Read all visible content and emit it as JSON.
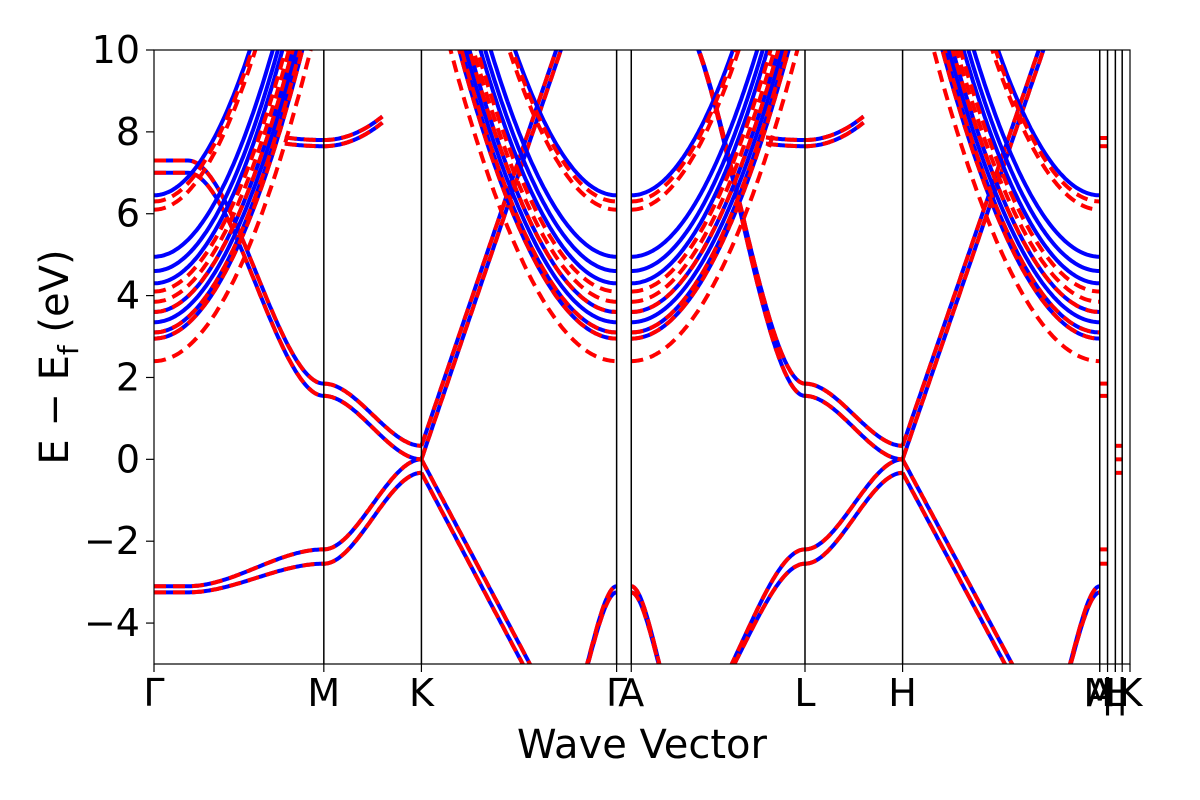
{
  "chart_data": {
    "type": "line",
    "title": "",
    "xlabel": "Wave Vector",
    "ylabel": "E − E_f (eV)",
    "ylabel_parts": {
      "main": "E − E",
      "sub": "f",
      "unit": " (eV)"
    },
    "ylim": [
      -5,
      10
    ],
    "yticks": [
      -4,
      -2,
      0,
      2,
      4,
      6,
      8,
      10
    ],
    "ytick_labels": [
      "−4",
      "−2",
      "0",
      "2",
      "4",
      "6",
      "8",
      "10"
    ],
    "xlim": [
      0,
      1
    ],
    "high_symmetry_points": [
      {
        "label": "Γ",
        "x": 0.0
      },
      {
        "label": "M",
        "x": 0.174
      },
      {
        "label": "K",
        "x": 0.274
      },
      {
        "label": "Γ",
        "x": 0.474
      },
      {
        "label": "A",
        "x": 0.489
      },
      {
        "label": "L",
        "x": 0.667
      },
      {
        "label": "H",
        "x": 0.767
      },
      {
        "label": "A",
        "x": 0.969
      },
      {
        "label": "M",
        "x": 0.969
      },
      {
        "label": "|",
        "x": 0.977
      },
      {
        "label": "L",
        "x": 0.985
      },
      {
        "label": "H",
        "x": 0.985
      },
      {
        "label": "|",
        "x": 0.992
      },
      {
        "label": "K",
        "x": 1.0
      }
    ],
    "grid": false,
    "series": [
      {
        "style": "solid",
        "color": "#0000ff"
      },
      {
        "style": "dashed",
        "color": "#ff0000"
      }
    ],
    "conduction_minima_gamma": {
      "solid": [
        2.95,
        3.1,
        3.35,
        3.6,
        4.3,
        4.6,
        4.95,
        6.45
      ],
      "dashed": [
        2.4,
        2.95,
        3.1,
        3.6,
        3.85,
        4.1,
        6.1,
        6.3
      ]
    }
  }
}
